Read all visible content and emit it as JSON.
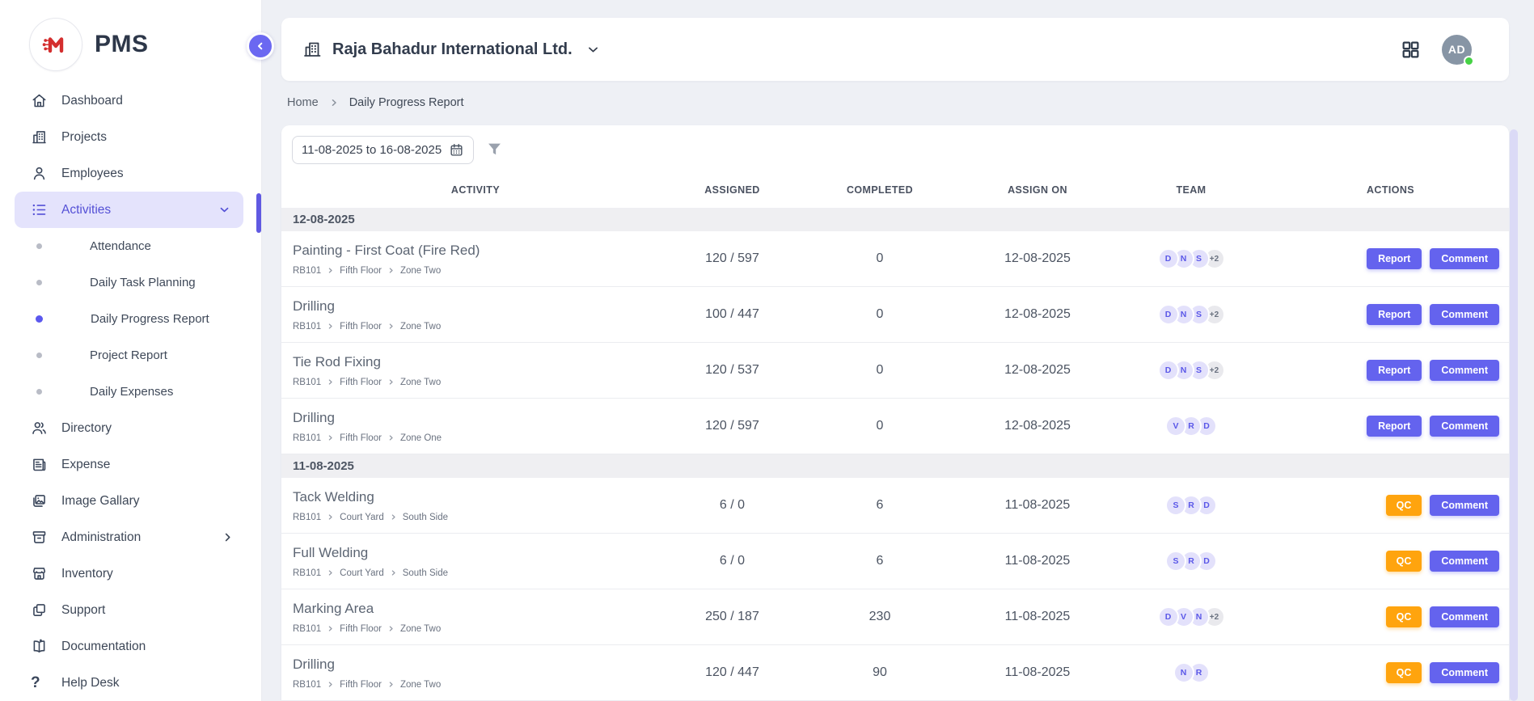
{
  "brand": {
    "name": "PMS",
    "logo_color": "#d42f2f"
  },
  "colors": {
    "accent_indigo": "#6463ee",
    "active_pill": "#e4e3fc",
    "qc_orange": "#ffa40e",
    "online_green": "#46d245",
    "content_bg": "#eef0f5"
  },
  "sidebar": {
    "items": [
      {
        "label": "Dashboard",
        "icon": "home"
      },
      {
        "label": "Projects",
        "icon": "building"
      },
      {
        "label": "Employees",
        "icon": "person"
      },
      {
        "label": "Activities",
        "icon": "list",
        "active": true,
        "chevron": "down",
        "children": [
          {
            "label": "Attendance",
            "active": false
          },
          {
            "label": "Daily Task Planning",
            "active": false
          },
          {
            "label": "Daily Progress Report",
            "active": true
          },
          {
            "label": "Project Report",
            "active": false
          },
          {
            "label": "Daily Expenses",
            "active": false
          }
        ]
      },
      {
        "label": "Directory",
        "icon": "people"
      },
      {
        "label": "Expense",
        "icon": "receipt"
      },
      {
        "label": "Image Gallary",
        "icon": "image"
      },
      {
        "label": "Administration",
        "icon": "archive",
        "chevron": "right"
      },
      {
        "label": "Inventory",
        "icon": "store"
      },
      {
        "label": "Support",
        "icon": "copy"
      },
      {
        "label": "Documentation",
        "icon": "book"
      },
      {
        "label": "Help Desk",
        "icon": "question"
      }
    ]
  },
  "header": {
    "company": "Raja Bahadur International Ltd.",
    "avatar_initials": "AD",
    "status": "online"
  },
  "breadcrumb": {
    "items": [
      "Home",
      "Daily Progress Report"
    ]
  },
  "filters": {
    "date_range": "11-08-2025 to 16-08-2025"
  },
  "table": {
    "columns": [
      "ACTIVITY",
      "ASSIGNED",
      "COMPLETED",
      "ASSIGN ON",
      "TEAM",
      "ACTIONS"
    ],
    "groups": [
      {
        "date": "12-08-2025",
        "rows": [
          {
            "activity": "Painting - First Coat (Fire Red)",
            "location": [
              "RB101",
              "Fifth Floor",
              "Zone Two"
            ],
            "assigned": "120 / 597",
            "completed": "0",
            "assign_on": "12-08-2025",
            "team": [
              "D",
              "N",
              "S"
            ],
            "team_more": "+2",
            "actions": [
              "Report",
              "Comment"
            ]
          },
          {
            "activity": "Drilling",
            "location": [
              "RB101",
              "Fifth Floor",
              "Zone Two"
            ],
            "assigned": "100 / 447",
            "completed": "0",
            "assign_on": "12-08-2025",
            "team": [
              "D",
              "N",
              "S"
            ],
            "team_more": "+2",
            "actions": [
              "Report",
              "Comment"
            ]
          },
          {
            "activity": "Tie Rod Fixing",
            "location": [
              "RB101",
              "Fifth Floor",
              "Zone Two"
            ],
            "assigned": "120 / 537",
            "completed": "0",
            "assign_on": "12-08-2025",
            "team": [
              "D",
              "N",
              "S"
            ],
            "team_more": "+2",
            "actions": [
              "Report",
              "Comment"
            ]
          },
          {
            "activity": "Drilling",
            "location": [
              "RB101",
              "Fifth Floor",
              "Zone One"
            ],
            "assigned": "120 / 597",
            "completed": "0",
            "assign_on": "12-08-2025",
            "team": [
              "V",
              "R",
              "D"
            ],
            "team_more": null,
            "actions": [
              "Report",
              "Comment"
            ]
          }
        ]
      },
      {
        "date": "11-08-2025",
        "rows": [
          {
            "activity": "Tack Welding",
            "location": [
              "RB101",
              "Court Yard",
              "South Side"
            ],
            "assigned": "6 / 0",
            "completed": "6",
            "assign_on": "11-08-2025",
            "team": [
              "S",
              "R",
              "D"
            ],
            "team_more": null,
            "actions": [
              "QC",
              "Comment"
            ]
          },
          {
            "activity": "Full Welding",
            "location": [
              "RB101",
              "Court Yard",
              "South Side"
            ],
            "assigned": "6 / 0",
            "completed": "6",
            "assign_on": "11-08-2025",
            "team": [
              "S",
              "R",
              "D"
            ],
            "team_more": null,
            "actions": [
              "QC",
              "Comment"
            ]
          },
          {
            "activity": "Marking Area",
            "location": [
              "RB101",
              "Fifth Floor",
              "Zone Two"
            ],
            "assigned": "250 / 187",
            "completed": "230",
            "assign_on": "11-08-2025",
            "team": [
              "D",
              "V",
              "N"
            ],
            "team_more": "+2",
            "actions": [
              "QC",
              "Comment"
            ]
          },
          {
            "activity": "Drilling",
            "location": [
              "RB101",
              "Fifth Floor",
              "Zone Two"
            ],
            "assigned": "120 / 447",
            "completed": "90",
            "assign_on": "11-08-2025",
            "team": [
              "N",
              "R"
            ],
            "team_more": null,
            "actions": [
              "QC",
              "Comment"
            ]
          }
        ]
      }
    ]
  }
}
